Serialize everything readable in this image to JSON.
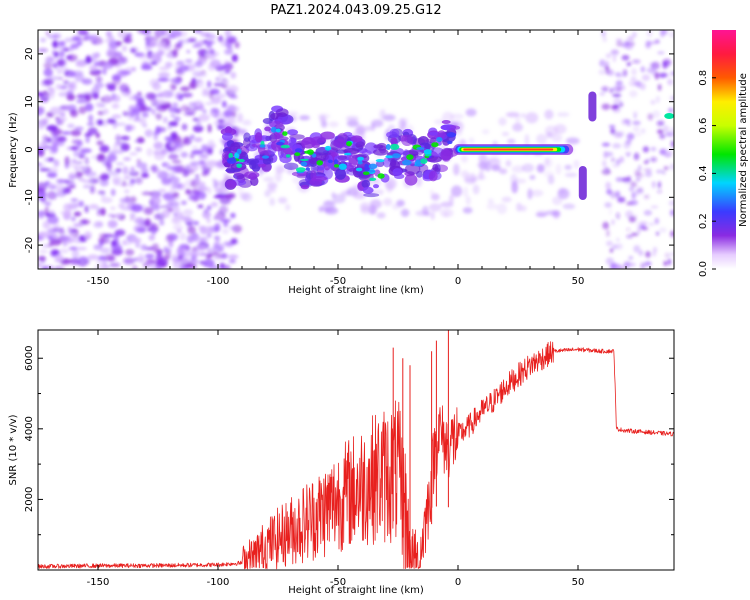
{
  "title": "PAZ1.2024.043.09.25.G12",
  "chart_data": [
    {
      "type": "heatmap",
      "xlabel": "Height of straight line (km)",
      "ylabel": "Frequency (Hz)",
      "xlim": [
        -175,
        90
      ],
      "ylim": [
        -25,
        25
      ],
      "xticks": [
        -150,
        -100,
        -50,
        0,
        50
      ],
      "yticks": [
        -20,
        -10,
        0,
        10,
        20
      ],
      "colorbar": {
        "label": "Normalized spectral amplitude",
        "range": [
          0,
          1
        ],
        "ticks": [
          0.0,
          0.2,
          0.4,
          0.6,
          0.8
        ],
        "colormap": "rainbow (white-purple-blue-cyan-green-yellow-red-pink)",
        "colors": [
          "#ffffff",
          "#e6ccff",
          "#8a2be2",
          "#3b3bff",
          "#00d5ff",
          "#00e600",
          "#c8ff00",
          "#ffee00",
          "#ff5a00",
          "#ff1a40",
          "#ff1493"
        ]
      },
      "ridge": [
        {
          "x": -95,
          "y": -3
        },
        {
          "x": -85,
          "y": -2
        },
        {
          "x": -75,
          "y": 4
        },
        {
          "x": -65,
          "y": -3
        },
        {
          "x": -55,
          "y": -2
        },
        {
          "x": -45,
          "y": -1
        },
        {
          "x": -35,
          "y": -5
        },
        {
          "x": -28,
          "y": -1
        },
        {
          "x": -20,
          "y": -1.5
        },
        {
          "x": -10,
          "y": -1
        },
        {
          "x": -5,
          "y": 2
        },
        {
          "x": 0,
          "y": 0.3
        },
        {
          "x": 10,
          "y": 0
        },
        {
          "x": 20,
          "y": 0
        },
        {
          "x": 30,
          "y": 0
        },
        {
          "x": 40,
          "y": 0
        },
        {
          "x": 48,
          "y": 0
        },
        {
          "x": 52,
          "y": -7
        },
        {
          "x": 56,
          "y": 9
        },
        {
          "x": 60,
          "y": -1
        },
        {
          "x": 75,
          "y": 0
        },
        {
          "x": 88,
          "y": 7
        }
      ],
      "peak_amplitude": 1.0
    },
    {
      "type": "line",
      "xlabel": "Height of straight line (km)",
      "ylabel": "SNR (10 * v/v)",
      "xlim": [
        -175,
        90
      ],
      "ylim": [
        0,
        6800
      ],
      "xticks": [
        -150,
        -100,
        -50,
        0,
        50
      ],
      "yticks": [
        2000,
        4000,
        6000
      ],
      "series": [
        {
          "color": "#e8201e",
          "x": [
            -175,
            -150,
            -120,
            -100,
            -90,
            -85,
            -80,
            -75,
            -70,
            -65,
            -60,
            -55,
            -50,
            -45,
            -40,
            -35,
            -30,
            -25,
            -20,
            -17,
            -15,
            -12,
            -10,
            -8,
            -5,
            0,
            5,
            10,
            15,
            20,
            25,
            30,
            35,
            40,
            50,
            60,
            65,
            66,
            70,
            80,
            90
          ],
          "y": [
            100,
            120,
            130,
            150,
            200,
            400,
            700,
            900,
            1100,
            1300,
            1500,
            1700,
            2000,
            2200,
            2400,
            2600,
            2700,
            2800,
            400,
            100,
            800,
            2000,
            3200,
            4000,
            3500,
            3800,
            4100,
            4500,
            4800,
            5200,
            5500,
            5800,
            6000,
            6200,
            6250,
            6200,
            6200,
            4000,
            3950,
            3900,
            3850
          ],
          "spikes": [
            {
              "x": -27,
              "y": 6300
            },
            {
              "x": -23,
              "y": 6000
            },
            {
              "x": -20,
              "y": 5800
            },
            {
              "x": -11,
              "y": 6200
            },
            {
              "x": -9,
              "y": 6500
            },
            {
              "x": -4,
              "y": 6800
            }
          ]
        }
      ]
    }
  ]
}
